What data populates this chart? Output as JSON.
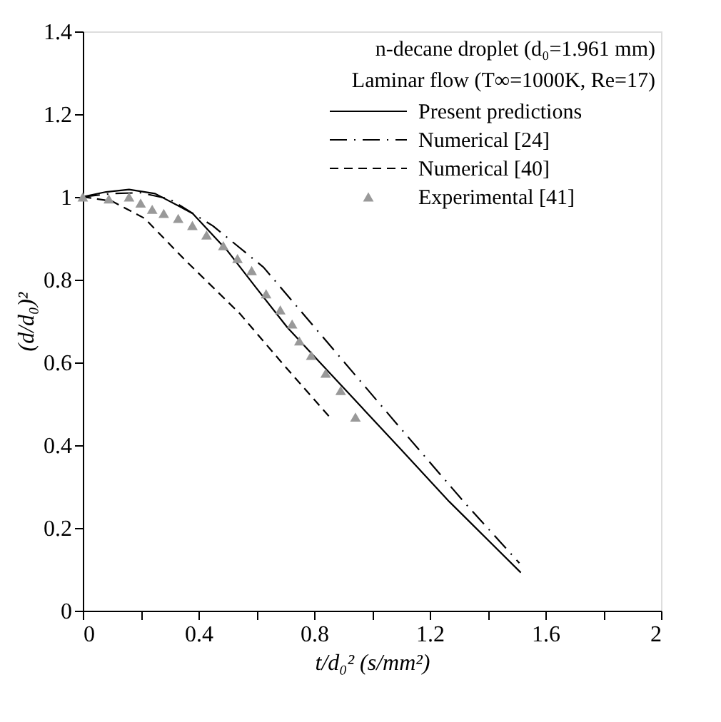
{
  "chart_data": {
    "type": "line",
    "xlabel": "t/d₀² (s/mm²)",
    "ylabel": "(d/d₀)²",
    "annotations": [
      "n-decane droplet (d₀=1.961 mm)",
      "Laminar flow (T∞=1000K, Re=17)"
    ],
    "xlim": [
      0,
      2
    ],
    "xticks": [
      0,
      {
        "value": 0.2,
        "label": null
      },
      0.4,
      {
        "value": 0.6,
        "label": null
      },
      0.8,
      {
        "value": 1.0,
        "label": null
      },
      1.2,
      {
        "value": 1.4,
        "label": null
      },
      1.6,
      {
        "value": 1.8,
        "label": null
      },
      2
    ],
    "ylim": [
      0,
      1.4
    ],
    "yticks": [
      0,
      0.2,
      0.4,
      0.6,
      0.8,
      1,
      1.2,
      1.4
    ],
    "grid": false,
    "legend": "top right",
    "series": [
      {
        "name": "Present predictions",
        "line_style": "solid",
        "color": "#000000",
        "x": [
          0,
          0.08,
          0.16,
          0.25,
          0.38,
          0.5,
          0.6,
          0.708,
          0.9,
          1.1,
          1.267,
          1.515
        ],
        "values": [
          1,
          1.012,
          1.018,
          1.008,
          0.96,
          0.87,
          0.78,
          0.684,
          0.54,
          0.39,
          0.264,
          0.092
        ]
      },
      {
        "name": "Numerical [24]",
        "line_style": "dashdot",
        "color": "#000000",
        "x": [
          0,
          0.1,
          0.2,
          0.3,
          0.45,
          0.625,
          0.905,
          1.1,
          1.317,
          1.51
        ],
        "values": [
          1,
          1.008,
          1.01,
          0.995,
          0.93,
          0.83,
          0.6,
          0.44,
          0.264,
          0.115
        ]
      },
      {
        "name": "Numerical [40]",
        "line_style": "dashed",
        "color": "#000000",
        "x": [
          0,
          0.1,
          0.214,
          0.35,
          0.543,
          0.7,
          0.856
        ],
        "values": [
          1,
          0.99,
          0.948,
          0.85,
          0.718,
          0.59,
          0.466
        ]
      },
      {
        "name": "Experimental [41]",
        "type": "scatter",
        "marker": "triangle",
        "color": "#999999",
        "x": [
          0,
          0.09,
          0.16,
          0.2,
          0.24,
          0.28,
          0.33,
          0.379,
          0.428,
          0.486,
          0.535,
          0.584,
          0.634,
          0.683,
          0.724,
          0.749,
          0.79,
          0.84,
          0.892,
          0.943
        ],
        "values": [
          1,
          0.995,
          1,
          0.985,
          0.97,
          0.96,
          0.948,
          0.931,
          0.908,
          0.882,
          0.851,
          0.822,
          0.766,
          0.727,
          0.693,
          0.652,
          0.617,
          0.574,
          0.532,
          0.468
        ]
      }
    ]
  }
}
